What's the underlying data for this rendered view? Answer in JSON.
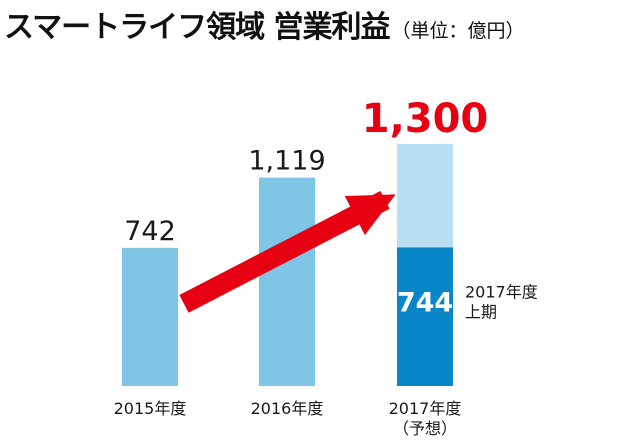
{
  "title": {
    "main": "スマートライフ領域 営業利益",
    "unit": "（単位：億円）"
  },
  "chart_data": {
    "type": "bar",
    "categories": [
      "2015年度",
      "2016年度",
      "2017年度"
    ],
    "category_sublabels": [
      "",
      "",
      "（予想）"
    ],
    "values": [
      742,
      1119,
      1300
    ],
    "value_labels": [
      "742",
      "1,119",
      "1,300"
    ],
    "segments": [
      {
        "category": "2017年度",
        "name": "2017年度\n上期",
        "name_lines": [
          "2017年度",
          "上期"
        ],
        "value": 744,
        "value_label": "744"
      }
    ],
    "trend_arrow": {
      "from": "2015年度",
      "to": "2017年度"
    },
    "ylim": [
      0,
      1450
    ],
    "colors": {
      "bar": "#7fc6e6",
      "forecast_bar": "#b8dff2",
      "segment": "#0886c8",
      "highlight": "#e60012",
      "arrow": "#e60012"
    }
  }
}
